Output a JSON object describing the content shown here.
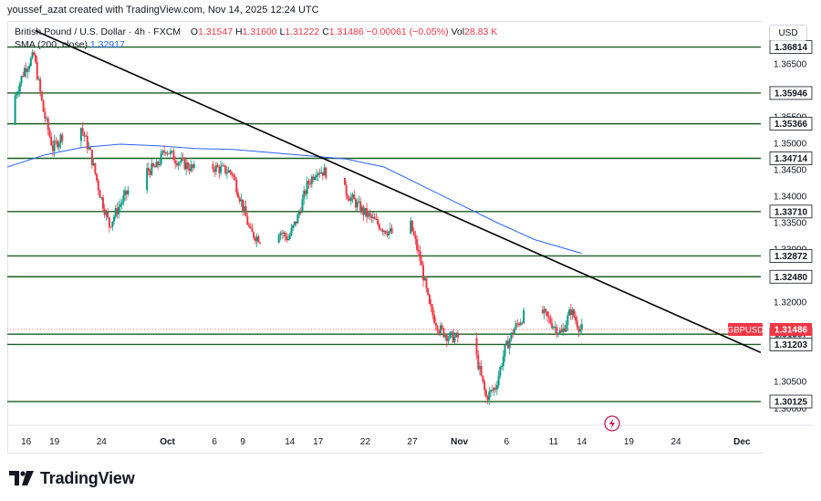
{
  "caption": "youssef_azat created with TradingView.com, Nov 14, 2025 12:24 UTC",
  "legend": {
    "symbol": "British Pound / U.S. Dollar · 4h · FXCM",
    "open_label": "O",
    "open": "1.31547",
    "high_label": "H",
    "high": "1.31600",
    "low_label": "L",
    "low": "1.31222",
    "close_label": "C",
    "close": "1.31486",
    "change": "−0.00061 (−0.05%)",
    "vol_label": "Vol",
    "vol": "28.83 K",
    "sma_label": "SMA (200, close)",
    "sma_value": "1.32917"
  },
  "currency_button": "USD",
  "brand": "TradingView",
  "icons": [
    "tradingview-logo-icon",
    "lightning-icon"
  ],
  "colors": {
    "up": "#089981",
    "down": "#f23645",
    "level": "#1b5e20",
    "sma": "#2962ff",
    "trendline": "#000000",
    "price_badge": "#f23645"
  },
  "chart_data": {
    "type": "candlestick",
    "symbol": "GBPUSD",
    "interval": "4h",
    "ylim": [
      1.2985,
      1.3715
    ],
    "xlim_days": [
      "2025-09-14",
      "2025-12-03"
    ],
    "y_ticks": [
      "1.37000",
      "1.36500",
      "1.35500",
      "1.35000",
      "1.34500",
      "1.34000",
      "1.33500",
      "1.33000",
      "1.32000",
      "1.30500",
      "1.30000"
    ],
    "x_ticks": [
      {
        "label": "16",
        "date": "2025-09-16"
      },
      {
        "label": "19",
        "date": "2025-09-19"
      },
      {
        "label": "24",
        "date": "2025-09-24"
      },
      {
        "label": "Oct",
        "date": "2025-10-01",
        "bold": true
      },
      {
        "label": "6",
        "date": "2025-10-06"
      },
      {
        "label": "9",
        "date": "2025-10-09"
      },
      {
        "label": "14",
        "date": "2025-10-14"
      },
      {
        "label": "17",
        "date": "2025-10-17"
      },
      {
        "label": "22",
        "date": "2025-10-22"
      },
      {
        "label": "27",
        "date": "2025-10-27"
      },
      {
        "label": "Nov",
        "date": "2025-11-01",
        "bold": true
      },
      {
        "label": "6",
        "date": "2025-11-06"
      },
      {
        "label": "11",
        "date": "2025-11-11"
      },
      {
        "label": "14",
        "date": "2025-11-14"
      },
      {
        "label": "19",
        "date": "2025-11-19"
      },
      {
        "label": "24",
        "date": "2025-11-24"
      },
      {
        "label": "Dec",
        "date": "2025-12-01",
        "bold": true
      }
    ],
    "levels": [
      "1.36814",
      "1.35946",
      "1.35366",
      "1.34714",
      "1.33710",
      "1.32872",
      "1.32480",
      "1.31397",
      "1.31203",
      "1.30125"
    ],
    "current_price": {
      "label": "GBPUSD",
      "value": "1.31486"
    },
    "trendline": {
      "start": {
        "date": "2025-09-17",
        "price": 1.3712
      },
      "end": {
        "date": "2025-12-03",
        "price": 1.3105
      }
    },
    "sma_200": {
      "dates": [
        "2025-09-14",
        "2025-09-18",
        "2025-09-22",
        "2025-09-26",
        "2025-09-30",
        "2025-10-04",
        "2025-10-08",
        "2025-10-12",
        "2025-10-16",
        "2025-10-20",
        "2025-10-24",
        "2025-10-28",
        "2025-11-01",
        "2025-11-05",
        "2025-11-09",
        "2025-11-14"
      ],
      "values": [
        1.3455,
        1.3478,
        1.3492,
        1.3498,
        1.3495,
        1.349,
        1.3488,
        1.3482,
        1.3476,
        1.347,
        1.3455,
        1.342,
        1.3385,
        1.335,
        1.3318,
        1.3292
      ]
    },
    "price_path": {
      "dates": [
        "2025-09-14",
        "2025-09-15",
        "2025-09-16",
        "2025-09-17",
        "2025-09-18",
        "2025-09-19",
        "2025-09-20",
        "2025-09-22",
        "2025-09-23",
        "2025-09-24",
        "2025-09-25",
        "2025-09-26",
        "2025-09-28",
        "2025-09-30",
        "2025-10-01",
        "2025-10-02",
        "2025-10-04",
        "2025-10-06",
        "2025-10-08",
        "2025-10-09",
        "2025-10-10",
        "2025-10-12",
        "2025-10-13",
        "2025-10-14",
        "2025-10-15",
        "2025-10-16",
        "2025-10-17",
        "2025-10-18",
        "2025-10-20",
        "2025-10-22",
        "2025-10-24",
        "2025-10-26",
        "2025-10-27",
        "2025-10-28",
        "2025-10-29",
        "2025-10-30",
        "2025-10-31",
        "2025-11-02",
        "2025-11-03",
        "2025-11-04",
        "2025-11-05",
        "2025-11-06",
        "2025-11-07",
        "2025-11-08",
        "2025-11-10",
        "2025-11-11",
        "2025-11-12",
        "2025-11-13",
        "2025-11-14"
      ],
      "values": [
        1.3535,
        1.359,
        1.364,
        1.3665,
        1.356,
        1.349,
        1.3515,
        1.353,
        1.348,
        1.3405,
        1.3345,
        1.338,
        1.344,
        1.3455,
        1.349,
        1.347,
        1.345,
        1.3455,
        1.3445,
        1.339,
        1.333,
        1.331,
        1.3335,
        1.332,
        1.336,
        1.342,
        1.345,
        1.3445,
        1.341,
        1.337,
        1.334,
        1.332,
        1.3345,
        1.328,
        1.319,
        1.315,
        1.3135,
        1.313,
        1.3095,
        1.302,
        1.304,
        1.311,
        1.315,
        1.3175,
        1.318,
        1.316,
        1.314,
        1.3185,
        1.3149
      ]
    }
  }
}
